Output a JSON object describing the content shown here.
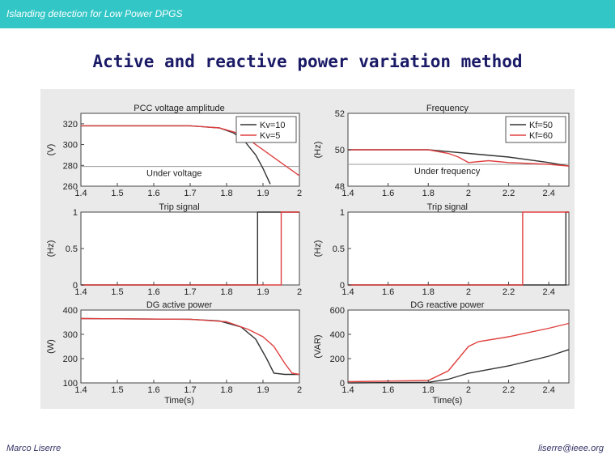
{
  "header": {
    "title": "Islanding detection for Low Power DPGS"
  },
  "slide": {
    "title": "Active and reactive power variation method"
  },
  "footer": {
    "author": "Marco Liserre",
    "email": "liserre@ieee.org"
  },
  "colors": {
    "topbar": "#33c6c6",
    "series_a": "#333333",
    "series_b": "#e04040",
    "threshold": "#999999"
  },
  "chart_data": [
    {
      "type": "line",
      "title": "PCC voltage amplitude",
      "xlabel": "",
      "ylabel": "(V)",
      "xlim": [
        1.4,
        2.0
      ],
      "ylim": [
        260,
        330
      ],
      "xticks": [
        "1.4",
        "1.5",
        "1.6",
        "1.7",
        "1.8",
        "1.9",
        "2"
      ],
      "yticks": [
        "260",
        "280",
        "300",
        "320"
      ],
      "ytick_values": [
        260,
        280,
        300,
        320
      ],
      "legend": "top-right",
      "annotations": [
        {
          "text": "Under voltage"
        }
      ],
      "hlines": [
        279
      ],
      "series": [
        {
          "name": "Kv=10",
          "x": [
            1.4,
            1.7,
            1.78,
            1.82,
            1.85,
            1.88,
            1.9,
            1.92
          ],
          "y": [
            318,
            318,
            316,
            311,
            303,
            290,
            277,
            262
          ]
        },
        {
          "name": "Kv=5",
          "x": [
            1.4,
            1.7,
            1.78,
            1.84,
            1.88,
            1.92,
            1.96,
            2.0
          ],
          "y": [
            318,
            318,
            316,
            310,
            300,
            290,
            280,
            270
          ]
        }
      ]
    },
    {
      "type": "line",
      "title": "Frequency",
      "xlabel": "",
      "ylabel": "(Hz)",
      "xlim": [
        1.4,
        2.5
      ],
      "ylim": [
        48,
        52
      ],
      "xticks": [
        "1.4",
        "1.6",
        "1.8",
        "2",
        "2.2",
        "2.4"
      ],
      "yticks": [
        "48",
        "50",
        "52"
      ],
      "ytick_values": [
        48,
        50,
        52
      ],
      "legend": "top-right",
      "annotations": [
        {
          "text": "Under frequency"
        }
      ],
      "hlines": [
        49.2
      ],
      "series": [
        {
          "name": "Kf=50",
          "x": [
            1.4,
            1.6,
            1.8,
            1.9,
            2.0,
            2.2,
            2.4,
            2.5
          ],
          "y": [
            50,
            50,
            50,
            49.9,
            49.8,
            49.6,
            49.3,
            49.1
          ]
        },
        {
          "name": "Kf=60",
          "x": [
            1.4,
            1.6,
            1.8,
            1.9,
            1.95,
            2.0,
            2.1,
            2.2,
            2.4,
            2.5
          ],
          "y": [
            50,
            50,
            50,
            49.8,
            49.6,
            49.3,
            49.4,
            49.3,
            49.2,
            49.1
          ]
        }
      ]
    },
    {
      "type": "line",
      "title": "Trip signal",
      "xlabel": "",
      "ylabel": "(Hz)",
      "xlim": [
        1.4,
        2.0
      ],
      "ylim": [
        0,
        1
      ],
      "xticks": [
        "1.4",
        "1.5",
        "1.6",
        "1.7",
        "1.8",
        "1.9",
        "2"
      ],
      "yticks": [
        "0",
        "0.5",
        "1"
      ],
      "ytick_values": [
        0,
        0.5,
        1
      ],
      "series": [
        {
          "x": [
            1.4,
            1.885,
            1.885,
            2.0
          ],
          "y": [
            0,
            0,
            1,
            1
          ]
        },
        {
          "x": [
            1.4,
            1.95,
            1.95,
            2.0
          ],
          "y": [
            0,
            0,
            1,
            1
          ]
        }
      ]
    },
    {
      "type": "line",
      "title": "Trip signal",
      "xlabel": "",
      "ylabel": "(Hz)",
      "xlim": [
        1.4,
        2.5
      ],
      "ylim": [
        0,
        1
      ],
      "xticks": [
        "1.4",
        "1.6",
        "1.8",
        "2",
        "2.2",
        "2.4"
      ],
      "yticks": [
        "0",
        "0.5",
        "1"
      ],
      "ytick_values": [
        0,
        0.5,
        1
      ],
      "series": [
        {
          "x": [
            1.4,
            2.485,
            2.485,
            2.5
          ],
          "y": [
            0,
            0,
            1,
            1
          ]
        },
        {
          "x": [
            1.4,
            2.27,
            2.27,
            2.5
          ],
          "y": [
            0,
            0,
            1,
            1
          ]
        }
      ]
    },
    {
      "type": "line",
      "title": "DG active power",
      "xlabel": "Time(s)",
      "ylabel": "(W)",
      "xlim": [
        1.4,
        2.0
      ],
      "ylim": [
        100,
        400
      ],
      "xticks": [
        "1.4",
        "1.5",
        "1.6",
        "1.7",
        "1.8",
        "1.9",
        "2"
      ],
      "yticks": [
        "100",
        "200",
        "300",
        "400"
      ],
      "ytick_values": [
        100,
        200,
        300,
        400
      ],
      "series": [
        {
          "x": [
            1.4,
            1.7,
            1.78,
            1.84,
            1.88,
            1.91,
            1.93,
            1.96,
            2.0
          ],
          "y": [
            365,
            362,
            355,
            330,
            280,
            200,
            140,
            135,
            135
          ]
        },
        {
          "x": [
            1.4,
            1.7,
            1.8,
            1.86,
            1.9,
            1.93,
            1.96,
            1.98,
            2.0
          ],
          "y": [
            365,
            362,
            352,
            320,
            290,
            250,
            180,
            140,
            135
          ]
        }
      ]
    },
    {
      "type": "line",
      "title": "DG reactive power",
      "xlabel": "Time(s)",
      "ylabel": "(VAR)",
      "xlim": [
        1.4,
        2.5
      ],
      "ylim": [
        0,
        600
      ],
      "xticks": [
        "1.4",
        "1.6",
        "1.8",
        "2",
        "2.2",
        "2.4"
      ],
      "yticks": [
        "0",
        "200",
        "400",
        "600"
      ],
      "ytick_values": [
        0,
        200,
        400,
        600
      ],
      "series": [
        {
          "x": [
            1.4,
            1.8,
            1.9,
            2.0,
            2.2,
            2.4,
            2.5
          ],
          "y": [
            0,
            5,
            30,
            80,
            140,
            220,
            275
          ]
        },
        {
          "x": [
            1.4,
            1.8,
            1.9,
            1.95,
            2.0,
            2.05,
            2.2,
            2.4,
            2.5
          ],
          "y": [
            10,
            20,
            100,
            200,
            300,
            340,
            380,
            450,
            490
          ]
        }
      ]
    }
  ]
}
